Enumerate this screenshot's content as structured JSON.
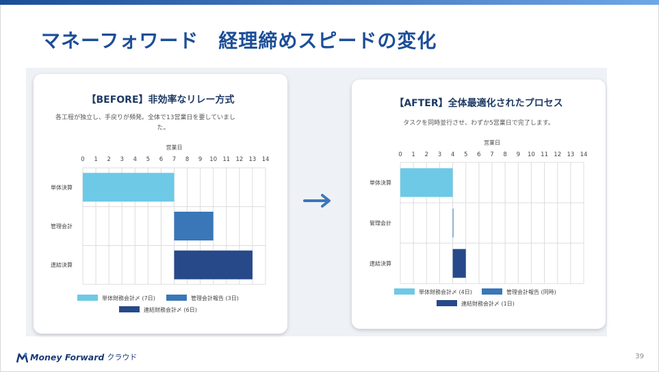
{
  "colors": {
    "title": "#1c4e98",
    "topbar_start": "#1c4e98",
    "topbar_end": "#6ea6e8",
    "tandoku": "#6dc9e6",
    "kanri": "#3a77b8",
    "renketsu": "#27498a",
    "grid": "#dcdcdc",
    "arrow": "#3a77b8"
  },
  "slide": {
    "title": "マネーフォワード　経理締めスピードの変化",
    "page_number": "39",
    "logo_text": "Money Forward",
    "logo_suffix": "クラウド"
  },
  "before": {
    "title": "【BEFORE】非効率なリレー方式",
    "desc_line1": "各工程が独立し、手戻りが頻発。全体で13営業日を要していまし",
    "desc_line2": "た。"
  },
  "after": {
    "title": "【AFTER】全体最適化されたプロセス",
    "desc": "タスクを同時並行させ、わずか5営業日で完了します。"
  },
  "chart_data": [
    {
      "type": "bar",
      "orientation": "horizontal-gantt",
      "xlabel": "営業日",
      "xlim": [
        0,
        14
      ],
      "xticks": [
        0,
        1,
        2,
        3,
        4,
        5,
        6,
        7,
        8,
        9,
        10,
        11,
        12,
        13,
        14
      ],
      "categories": [
        "単体決算",
        "管理会計",
        "連結決算"
      ],
      "series": [
        {
          "name": "単体財務会計〆 (7日)",
          "category": "単体決算",
          "start": 0,
          "end": 7,
          "color": "#6dc9e6"
        },
        {
          "name": "管理会計報告 (3日)",
          "category": "管理会計",
          "start": 7,
          "end": 10,
          "color": "#3a77b8"
        },
        {
          "name": "連結財務会計〆 (6日)",
          "category": "連結決算",
          "start": 7,
          "end": 13,
          "color": "#27498a"
        }
      ],
      "grid": true,
      "legend": "bottom"
    },
    {
      "type": "bar",
      "orientation": "horizontal-gantt",
      "xlabel": "営業日",
      "xlim": [
        0,
        14
      ],
      "xticks": [
        0,
        1,
        2,
        3,
        4,
        5,
        6,
        7,
        8,
        9,
        10,
        11,
        12,
        13,
        14
      ],
      "categories": [
        "単体決算",
        "管理会計",
        "連結決算"
      ],
      "series": [
        {
          "name": "単体財務会計〆 (4日)",
          "category": "単体決算",
          "start": 0,
          "end": 4,
          "color": "#6dc9e6"
        },
        {
          "name": "管理会計報告 (同時)",
          "category": "管理会計",
          "start": 4,
          "end": 4.05,
          "color": "#3a77b8"
        },
        {
          "name": "連結財務会計〆 (1日)",
          "category": "連結決算",
          "start": 4,
          "end": 5,
          "color": "#27498a"
        }
      ],
      "grid": true,
      "legend": "bottom"
    }
  ]
}
